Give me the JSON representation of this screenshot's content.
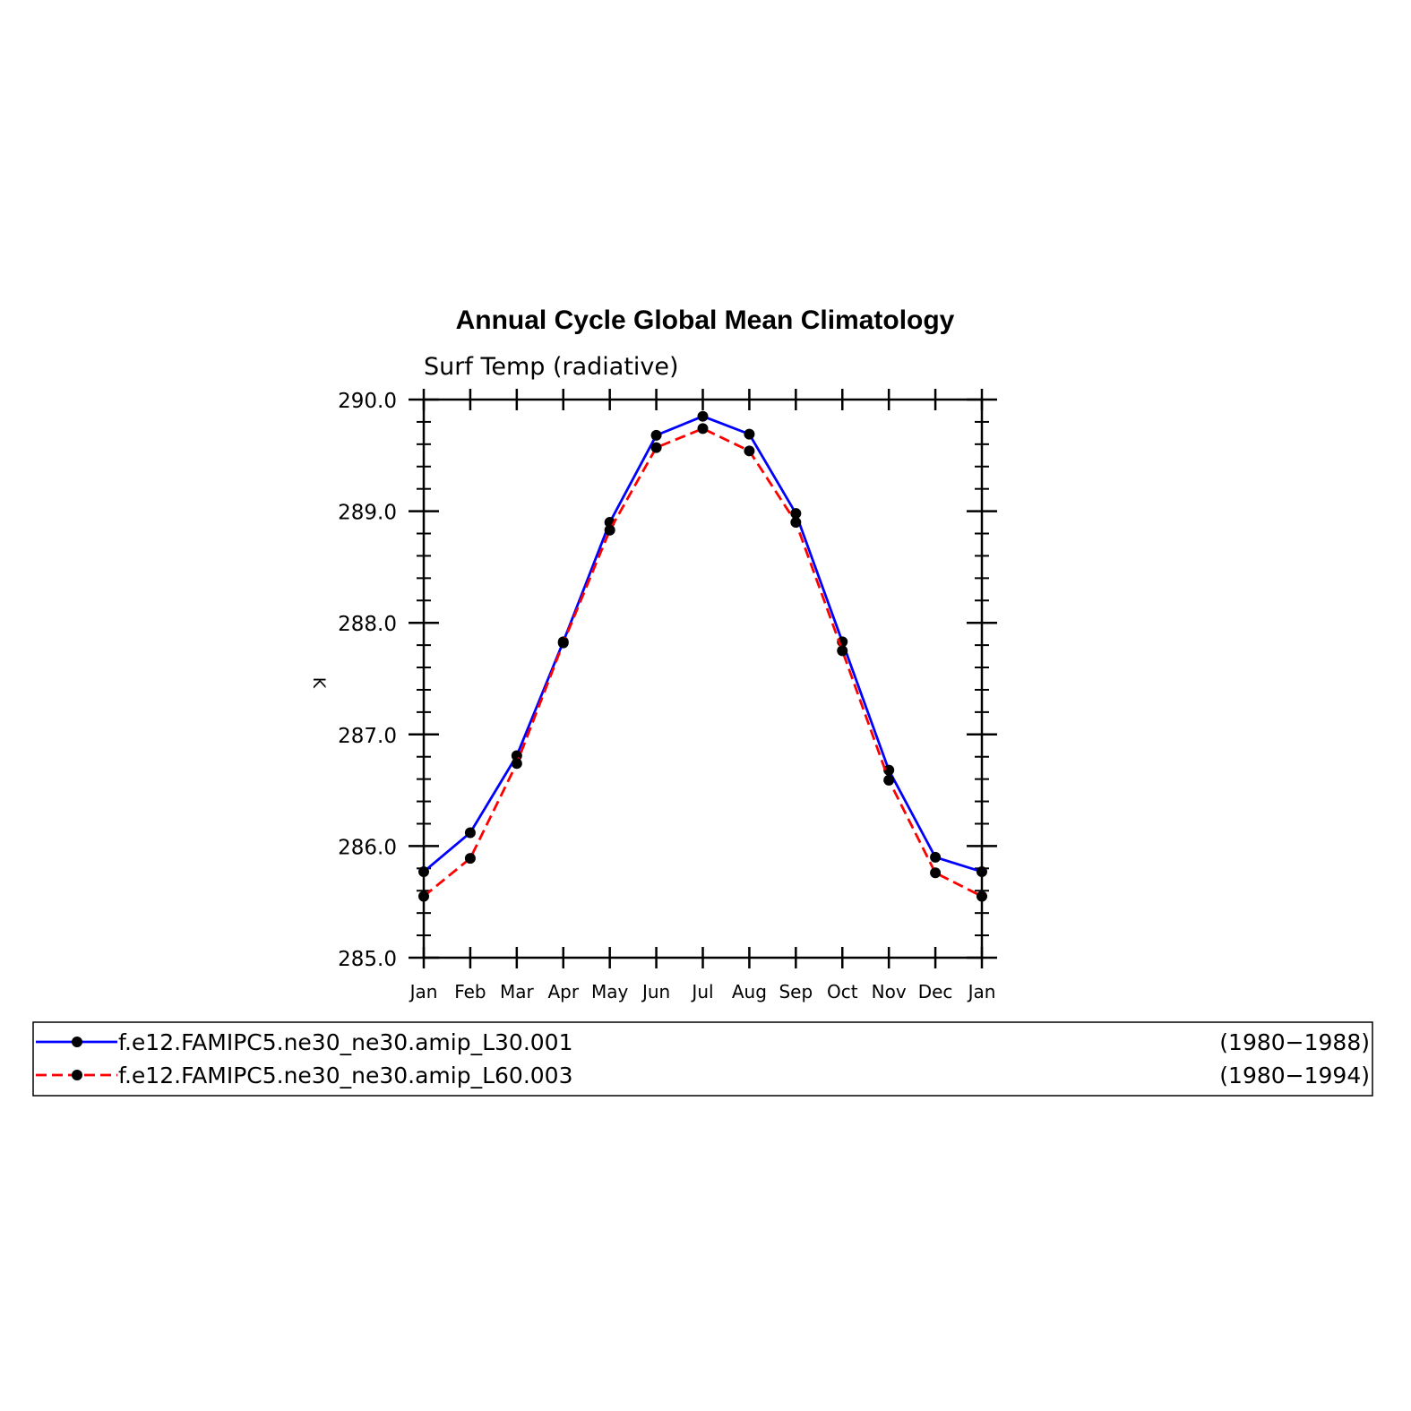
{
  "chart_data": {
    "type": "line",
    "title": "Annual Cycle Global Mean Climatology",
    "subtitle": "Surf Temp (radiative)",
    "ylabel": "K",
    "xlabel": "",
    "ylim": [
      285.0,
      290.0
    ],
    "yticks": [
      "285.0",
      "286.0",
      "287.0",
      "288.0",
      "289.0",
      "290.0"
    ],
    "categories": [
      "Jan",
      "Feb",
      "Mar",
      "Apr",
      "May",
      "Jun",
      "Jul",
      "Aug",
      "Sep",
      "Oct",
      "Nov",
      "Dec",
      "Jan"
    ],
    "grid": false,
    "legend_position": "bottom",
    "series": [
      {
        "name": "f.e12.FAMIPC5.ne30_ne30.amip_L30.001",
        "period": "(1980−1988)",
        "color": "#0000ff",
        "dash": "solid",
        "marker": "filled-circle",
        "values": [
          285.77,
          286.12,
          286.81,
          287.83,
          288.9,
          289.68,
          289.85,
          289.69,
          288.98,
          287.83,
          286.68,
          285.9,
          285.77
        ]
      },
      {
        "name": "f.e12.FAMIPC5.ne30_ne30.amip_L60.003",
        "period": "(1980−1994)",
        "color": "#ff0000",
        "dash": "dashed",
        "marker": "filled-circle",
        "values": [
          285.55,
          285.89,
          286.74,
          287.82,
          288.83,
          289.57,
          289.74,
          289.54,
          288.9,
          287.75,
          286.59,
          285.76,
          285.55
        ]
      }
    ]
  }
}
